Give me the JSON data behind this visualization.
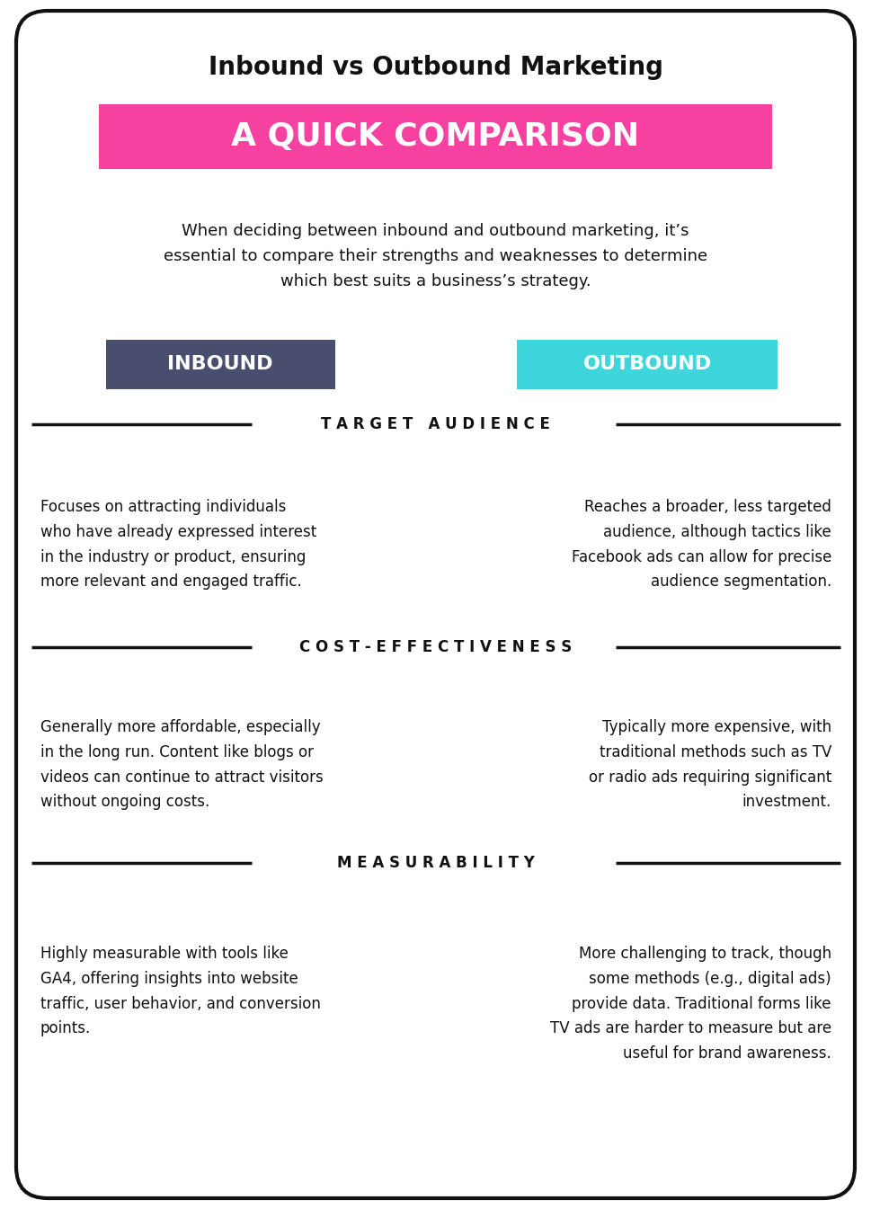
{
  "title": "Inbound vs Outbound Marketing",
  "subtitle": "A QUICK COMPARISON",
  "subtitle_bg": "#F741A0",
  "subtitle_color": "#FFFFFF",
  "intro_text": "When deciding between inbound and outbound marketing, it’s\nessential to compare their strengths and weaknesses to determine\nwhich best suits a business’s strategy.",
  "inbound_label": "INBOUND",
  "inbound_bg": "#4A4E6E",
  "outbound_label": "OUTBOUND",
  "outbound_bg": "#3DD6DC",
  "label_color": "#FFFFFF",
  "sections": [
    {
      "header": "T A R G E T   A U D I E N C E",
      "inbound_text": "Focuses on attracting individuals\nwho have already expressed interest\nin the industry or product, ensuring\nmore relevant and engaged traffic.",
      "outbound_text": "Reaches a broader, less targeted\naudience, although tactics like\nFacebook ads can allow for precise\naudience segmentation."
    },
    {
      "header": "C O S T - E F F E C T I V E N E S S",
      "inbound_text": "Generally more affordable, especially\nin the long run. Content like blogs or\nvideos can continue to attract visitors\nwithout ongoing costs.",
      "outbound_text": "Typically more expensive, with\ntraditional methods such as TV\nor radio ads requiring significant\ninvestment."
    },
    {
      "header": "M E A S U R A B I L I T Y",
      "inbound_text": "Highly measurable with tools like\nGA4, offering insights into website\ntraffic, user behavior, and conversion\npoints.",
      "outbound_text": "More challenging to track, though\nsome methods (e.g., digital ads)\nprovide data. Traditional forms like\nTV ads are harder to measure but are\nuseful for brand awareness."
    }
  ],
  "bg_color": "#FFFFFF",
  "border_color": "#111111",
  "text_color": "#111111",
  "divider_color": "#111111"
}
